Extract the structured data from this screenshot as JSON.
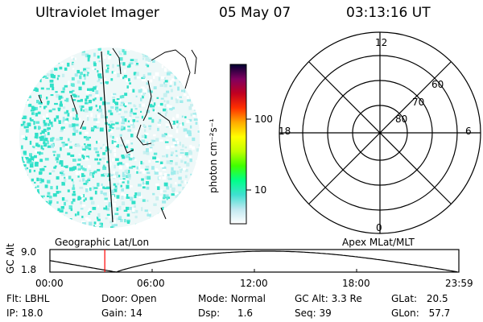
{
  "header": {
    "title": "Ultraviolet Imager",
    "date": "05 May 07",
    "time": "03:13:16 UT"
  },
  "colorbar": {
    "label": "photon cm⁻²s⁻¹",
    "ticks": [
      {
        "value": 100,
        "label": "100"
      },
      {
        "value": 10,
        "label": "10"
      }
    ],
    "scale": "log",
    "range": [
      2.5,
      500
    ]
  },
  "left_panel": {
    "caption": "Geographic Lat/Lon"
  },
  "polar_panel": {
    "caption": "Apex MLat/MLT",
    "mlt_labels": {
      "top": "12",
      "left": "18",
      "right": "6",
      "bottom": "0"
    },
    "lat_labels": [
      "60",
      "70",
      "80"
    ]
  },
  "altitude_plot": {
    "axis_title": "GC Alt",
    "y_ticks": [
      "9.0",
      "1.8"
    ],
    "y_range": [
      1.8,
      9.0
    ],
    "x_ticks": [
      "00:00",
      "06:00",
      "12:00",
      "18:00",
      "23:59"
    ],
    "marker_time_hours": 3.22,
    "marker_color": "#ff0000"
  },
  "footer": {
    "row1": [
      {
        "label": "Flt:",
        "value": "LBHL"
      },
      {
        "label": "Door:",
        "value": "Open"
      },
      {
        "label": "Mode:",
        "value": "Normal"
      },
      {
        "label": "GC Alt:",
        "value": "3.3 Re"
      },
      {
        "label": "GLat:",
        "value": "20.5"
      }
    ],
    "row2": [
      {
        "label": "IP:",
        "value": "18.0"
      },
      {
        "label": "Gain:",
        "value": "14"
      },
      {
        "label": "Dsp:",
        "value": "1.6"
      },
      {
        "label": "Seq:",
        "value": "39"
      },
      {
        "label": "GLon:",
        "value": "57.7"
      }
    ]
  },
  "colors": {
    "colorbar_stops": [
      "#ffffff",
      "#c0e8f0",
      "#40e0d0",
      "#00ff88",
      "#40ff00",
      "#c0ff00",
      "#ffff00",
      "#ffaa00",
      "#ff3000",
      "#c00020",
      "#800060",
      "#000030"
    ]
  }
}
